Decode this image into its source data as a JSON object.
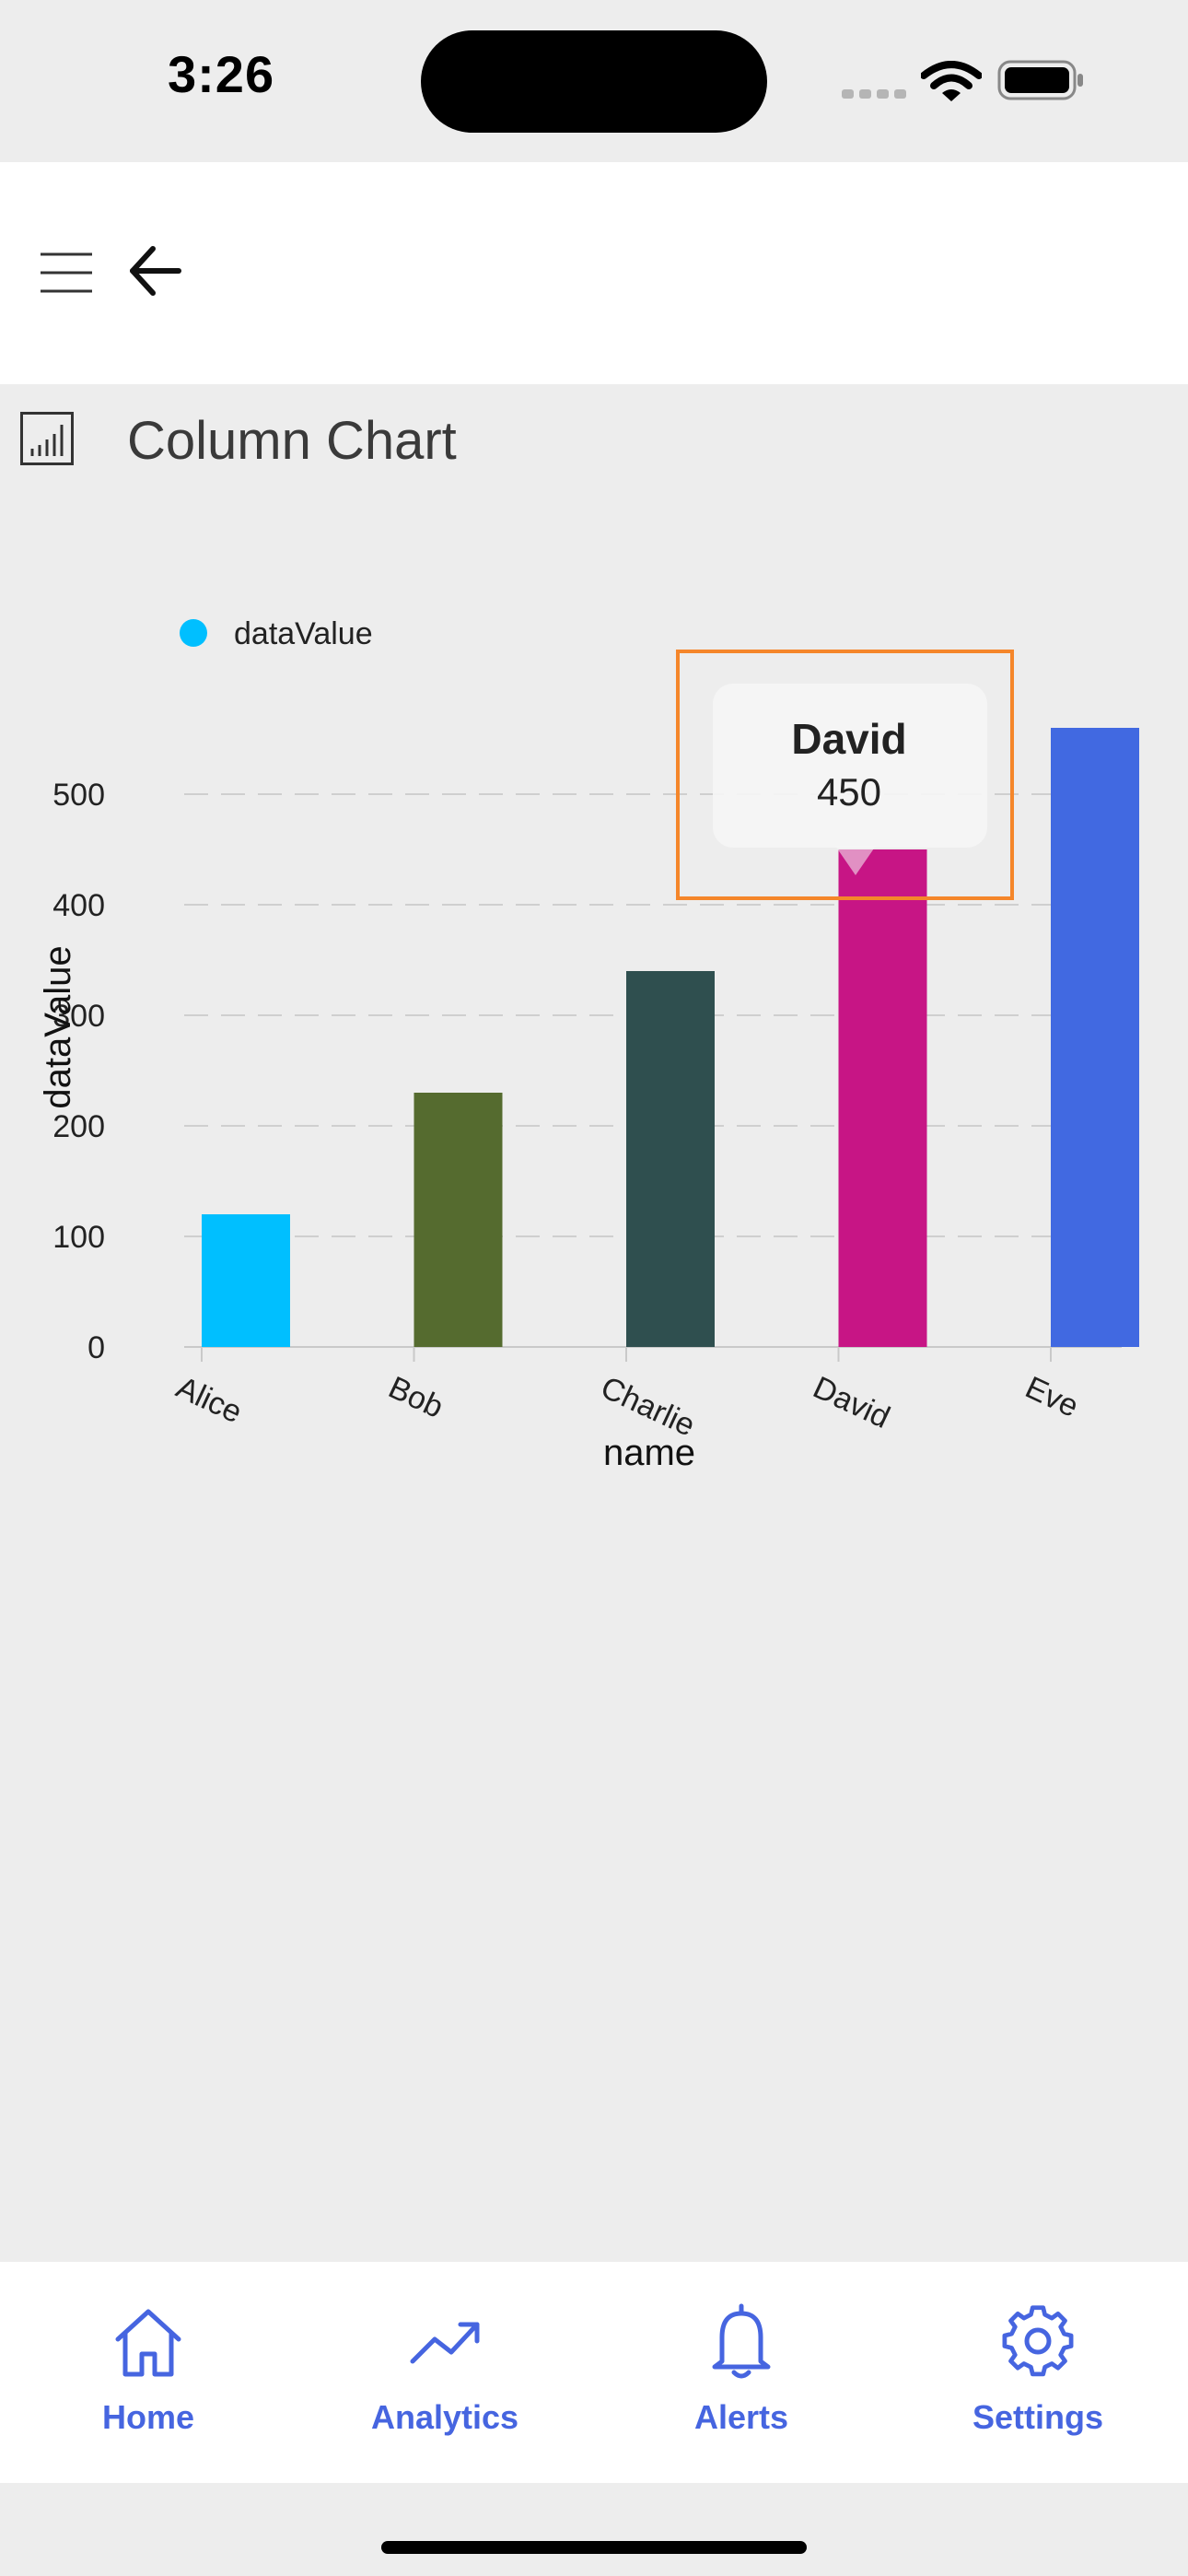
{
  "status": {
    "time": "3:26"
  },
  "page": {
    "title": "Column Chart"
  },
  "chart_data": {
    "type": "bar",
    "categories": [
      "Alice",
      "Bob",
      "Charlie",
      "David",
      "Eve"
    ],
    "series": [
      {
        "name": "dataValue",
        "values": [
          120,
          230,
          340,
          450,
          560
        ]
      }
    ],
    "bar_colors": [
      "#00bfff",
      "#556b2f",
      "#2f4f4f",
      "#c71585",
      "#4169e1"
    ],
    "legend_color": "#00bfff",
    "xlabel": "name",
    "ylabel": "dataValue",
    "yticks": [
      0,
      100,
      200,
      300,
      400,
      500
    ],
    "ylim": [
      0,
      600
    ],
    "grid": true,
    "legend_position": "top-left",
    "tooltip": {
      "category": "David",
      "value": "450"
    }
  },
  "tabs": [
    {
      "label": "Home",
      "icon": "home-icon"
    },
    {
      "label": "Analytics",
      "icon": "analytics-icon"
    },
    {
      "label": "Alerts",
      "icon": "bell-icon"
    },
    {
      "label": "Settings",
      "icon": "gear-icon"
    }
  ],
  "colors": {
    "accent": "#4665e0",
    "highlight": "#f5862a"
  }
}
